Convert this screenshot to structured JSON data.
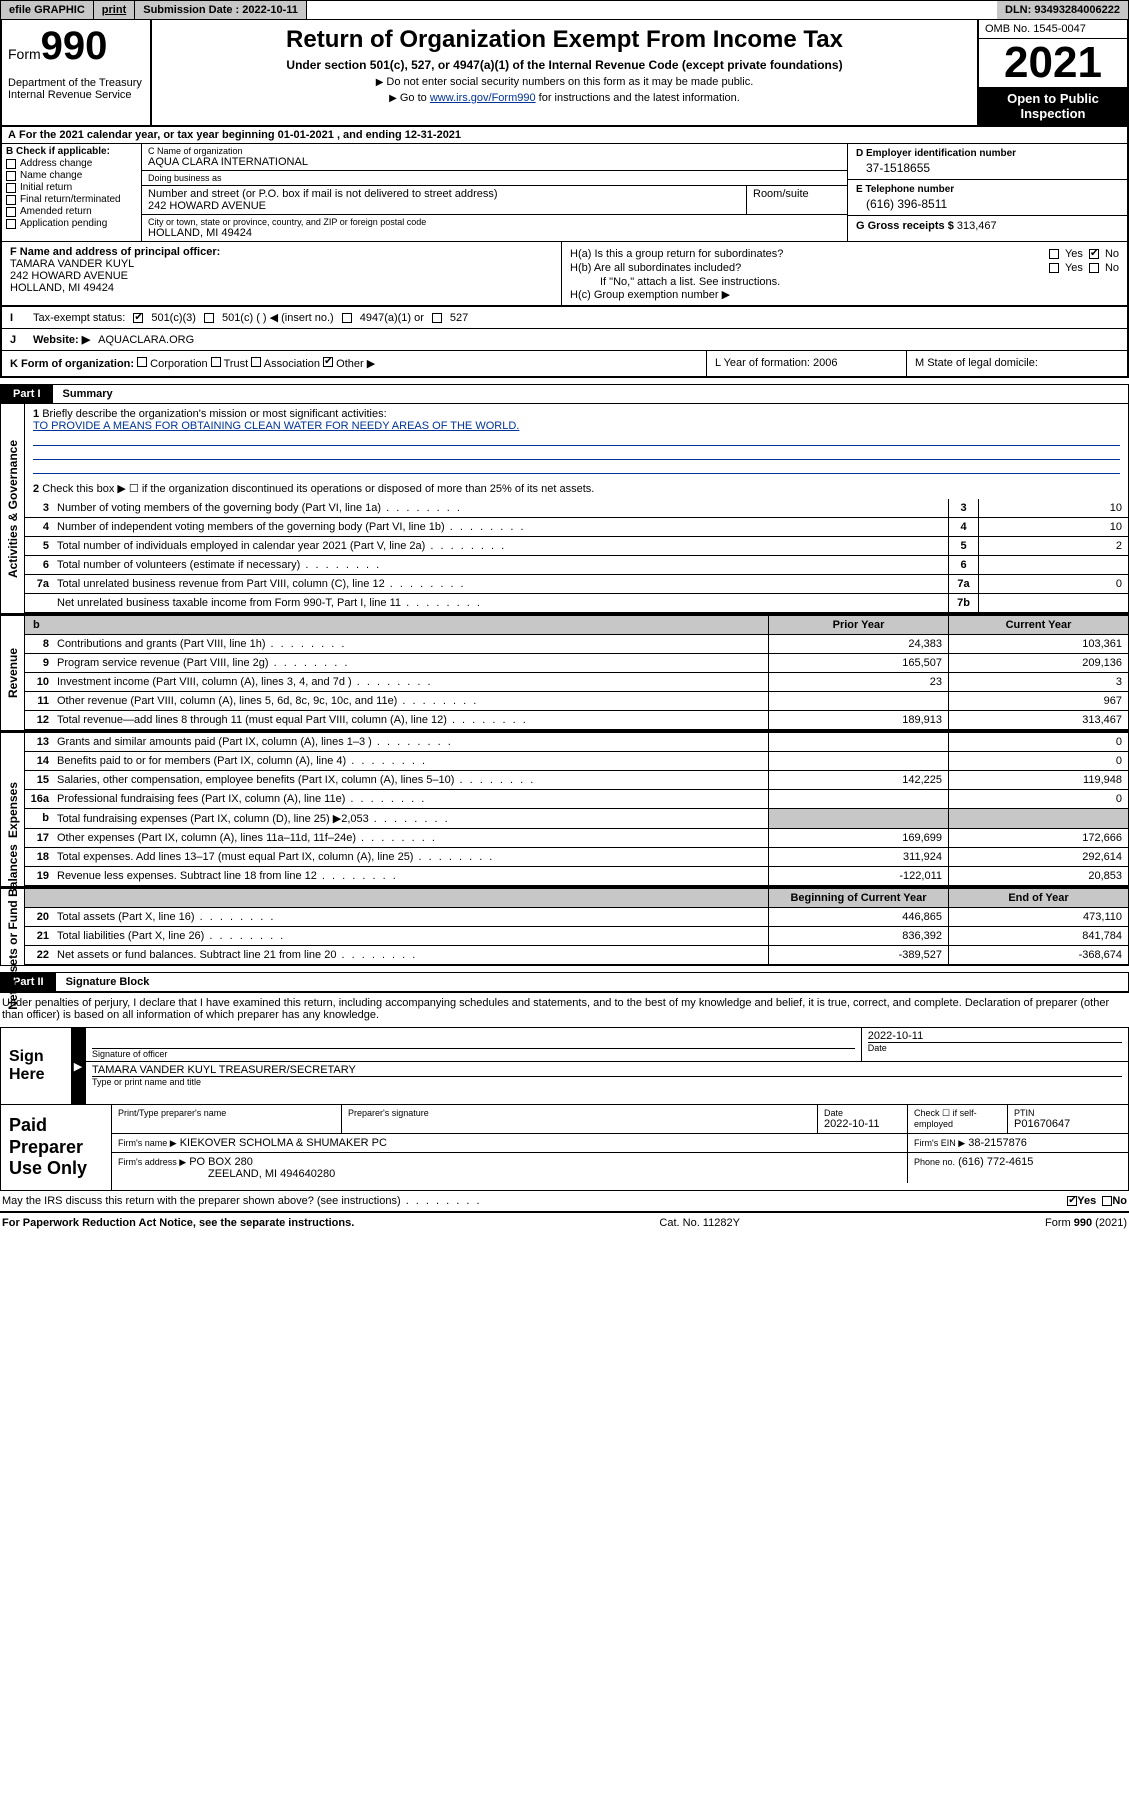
{
  "topbar": {
    "efile": "efile GRAPHIC",
    "print": "print",
    "submission_label": "Submission Date : 2022-10-11",
    "dln": "DLN: 93493284006222"
  },
  "header": {
    "form_word": "Form",
    "form_num": "990",
    "dept": "Department of the Treasury\nInternal Revenue Service",
    "title": "Return of Organization Exempt From Income Tax",
    "sub1": "Under section 501(c), 527, or 4947(a)(1) of the Internal Revenue Code (except private foundations)",
    "sub2": "Do not enter social security numbers on this form as it may be made public.",
    "sub3_pre": "Go to ",
    "sub3_link": "www.irs.gov/Form990",
    "sub3_post": " for instructions and the latest information.",
    "omb": "OMB No. 1545-0047",
    "year": "2021",
    "open": "Open to Public Inspection"
  },
  "rowA": "For the 2021 calendar year, or tax year beginning 01-01-2021   , and ending 12-31-2021",
  "colB": {
    "label": "B Check if applicable:",
    "items": [
      "Address change",
      "Name change",
      "Initial return",
      "Final return/terminated",
      "Amended return",
      "Application pending"
    ]
  },
  "colC": {
    "name_lbl": "C Name of organization",
    "name": "AQUA CLARA INTERNATIONAL",
    "dba_lbl": "Doing business as",
    "dba": "",
    "street_lbl": "Number and street (or P.O. box if mail is not delivered to street address)",
    "street": "242 HOWARD AVENUE",
    "room_lbl": "Room/suite",
    "city_lbl": "City or town, state or province, country, and ZIP or foreign postal code",
    "city": "HOLLAND, MI  49424"
  },
  "colD": {
    "ein_lbl": "D Employer identification number",
    "ein": "37-1518655",
    "tel_lbl": "E Telephone number",
    "tel": "(616) 396-8511",
    "gross_lbl": "G Gross receipts $",
    "gross": "313,467"
  },
  "blockF": {
    "f_lbl": "F Name and address of principal officer:",
    "f_name": "TAMARA VANDER KUYL",
    "f_addr1": "242 HOWARD AVENUE",
    "f_addr2": "HOLLAND, MI  49424"
  },
  "blockH": {
    "ha": "H(a)  Is this a group return for subordinates?",
    "ha_yes": "Yes",
    "ha_no": "No",
    "hb": "H(b)  Are all subordinates included?",
    "hb_yes": "Yes",
    "hb_no": "No",
    "hb_note": "If \"No,\" attach a list. See instructions.",
    "hc": "H(c)  Group exemption number ▶"
  },
  "rowI": {
    "label": "Tax-exempt status:",
    "opts": [
      "501(c)(3)",
      "501(c) (   ) ◀ (insert no.)",
      "4947(a)(1) or",
      "527"
    ],
    "checked": 0
  },
  "rowJ": {
    "label": "Website: ▶",
    "val": "AQUACLARA.ORG"
  },
  "rowK": {
    "label": "K Form of organization:",
    "opts": [
      "Corporation",
      "Trust",
      "Association",
      "Other ▶"
    ],
    "checked": 3,
    "L": "L Year of formation: 2006",
    "M": "M State of legal domicile:"
  },
  "part1": {
    "num": "Part I",
    "title": "Summary",
    "line1_lbl": "Briefly describe the organization's mission or most significant activities:",
    "line1_val": "TO PROVIDE A MEANS FOR OBTAINING CLEAN WATER FOR NEEDY AREAS OF THE WORLD.",
    "line2": "Check this box ▶ ☐  if the organization discontinued its operations or disposed of more than 25% of its net assets.",
    "rows_gov": [
      {
        "n": "3",
        "d": "Number of voting members of the governing body (Part VI, line 1a)",
        "c": "3",
        "v": "10"
      },
      {
        "n": "4",
        "d": "Number of independent voting members of the governing body (Part VI, line 1b)",
        "c": "4",
        "v": "10"
      },
      {
        "n": "5",
        "d": "Total number of individuals employed in calendar year 2021 (Part V, line 2a)",
        "c": "5",
        "v": "2"
      },
      {
        "n": "6",
        "d": "Total number of volunteers (estimate if necessary)",
        "c": "6",
        "v": ""
      },
      {
        "n": "7a",
        "d": "Total unrelated business revenue from Part VIII, column (C), line 12",
        "c": "7a",
        "v": "0"
      },
      {
        "n": "",
        "d": "Net unrelated business taxable income from Form 990-T, Part I, line 11",
        "c": "7b",
        "v": ""
      }
    ],
    "col_prior": "Prior Year",
    "col_curr": "Current Year",
    "rows_rev": [
      {
        "n": "8",
        "d": "Contributions and grants (Part VIII, line 1h)",
        "p": "24,383",
        "c": "103,361"
      },
      {
        "n": "9",
        "d": "Program service revenue (Part VIII, line 2g)",
        "p": "165,507",
        "c": "209,136"
      },
      {
        "n": "10",
        "d": "Investment income (Part VIII, column (A), lines 3, 4, and 7d )",
        "p": "23",
        "c": "3"
      },
      {
        "n": "11",
        "d": "Other revenue (Part VIII, column (A), lines 5, 6d, 8c, 9c, 10c, and 11e)",
        "p": "",
        "c": "967"
      },
      {
        "n": "12",
        "d": "Total revenue—add lines 8 through 11 (must equal Part VIII, column (A), line 12)",
        "p": "189,913",
        "c": "313,467"
      }
    ],
    "rows_exp": [
      {
        "n": "13",
        "d": "Grants and similar amounts paid (Part IX, column (A), lines 1–3 )",
        "p": "",
        "c": "0"
      },
      {
        "n": "14",
        "d": "Benefits paid to or for members (Part IX, column (A), line 4)",
        "p": "",
        "c": "0"
      },
      {
        "n": "15",
        "d": "Salaries, other compensation, employee benefits (Part IX, column (A), lines 5–10)",
        "p": "142,225",
        "c": "119,948"
      },
      {
        "n": "16a",
        "d": "Professional fundraising fees (Part IX, column (A), line 11e)",
        "p": "",
        "c": "0"
      },
      {
        "n": "b",
        "d": "Total fundraising expenses (Part IX, column (D), line 25) ▶2,053",
        "p": "shade",
        "c": "shade"
      },
      {
        "n": "17",
        "d": "Other expenses (Part IX, column (A), lines 11a–11d, 11f–24e)",
        "p": "169,699",
        "c": "172,666"
      },
      {
        "n": "18",
        "d": "Total expenses. Add lines 13–17 (must equal Part IX, column (A), line 25)",
        "p": "311,924",
        "c": "292,614"
      },
      {
        "n": "19",
        "d": "Revenue less expenses. Subtract line 18 from line 12",
        "p": "-122,011",
        "c": "20,853"
      }
    ],
    "col_beg": "Beginning of Current Year",
    "col_end": "End of Year",
    "rows_net": [
      {
        "n": "20",
        "d": "Total assets (Part X, line 16)",
        "p": "446,865",
        "c": "473,110"
      },
      {
        "n": "21",
        "d": "Total liabilities (Part X, line 26)",
        "p": "836,392",
        "c": "841,784"
      },
      {
        "n": "22",
        "d": "Net assets or fund balances. Subtract line 21 from line 20",
        "p": "-389,527",
        "c": "-368,674"
      }
    ]
  },
  "sidetabs": {
    "gov": "Activities & Governance",
    "rev": "Revenue",
    "exp": "Expenses",
    "net": "Net Assets or Fund Balances"
  },
  "part2": {
    "num": "Part II",
    "title": "Signature Block"
  },
  "penalty": "Under penalties of perjury, I declare that I have examined this return, including accompanying schedules and statements, and to the best of my knowledge and belief, it is true, correct, and complete. Declaration of preparer (other than officer) is based on all information of which preparer has any knowledge.",
  "sign": {
    "label": "Sign Here",
    "sig_lbl": "Signature of officer",
    "date_lbl": "Date",
    "date": "2022-10-11",
    "name": "TAMARA VANDER KUYL  TREASURER/SECRETARY",
    "name_lbl": "Type or print name and title"
  },
  "prep": {
    "label": "Paid Preparer Use Only",
    "r1": {
      "a": "Print/Type preparer's name",
      "b": "Preparer's signature",
      "c": "Date",
      "cval": "2022-10-11",
      "d": "Check ☐ if self-employed",
      "e": "PTIN",
      "eval": "P01670647"
    },
    "r2": {
      "a": "Firm's name    ▶",
      "aval": "KIEKOVER SCHOLMA & SHUMAKER PC",
      "b": "Firm's EIN ▶",
      "bval": "38-2157876"
    },
    "r3": {
      "a": "Firm's address ▶",
      "aval": "PO BOX 280",
      "aval2": "ZEELAND, MI  494640280",
      "b": "Phone no.",
      "bval": "(616) 772-4615"
    }
  },
  "discuss": {
    "q": "May the IRS discuss this return with the preparer shown above? (see instructions)",
    "yes": "Yes",
    "no": "No"
  },
  "footer": {
    "l": "For Paperwork Reduction Act Notice, see the separate instructions.",
    "m": "Cat. No. 11282Y",
    "r": "Form 990 (2021)"
  }
}
